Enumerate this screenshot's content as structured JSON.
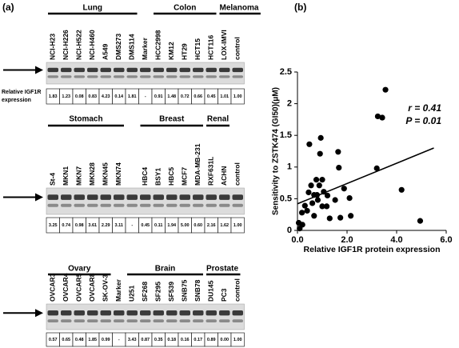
{
  "panel_a": {
    "label": "(a)",
    "row_label": [
      "Relative IGF1R",
      "expression"
    ],
    "rows": [
      {
        "sections": [
          {
            "group": "Lung",
            "lanes": [
              {
                "label": "NCI-H23",
                "value": "1.83"
              },
              {
                "label": "NCI-H226",
                "value": "1.23"
              },
              {
                "label": "NCI-H522",
                "value": "0.08"
              },
              {
                "label": "NCI-H460",
                "value": "0.83"
              },
              {
                "label": "A549",
                "value": "4.23"
              },
              {
                "label": "DMS273",
                "value": "0.14"
              },
              {
                "label": "DMS114",
                "value": "1.81"
              }
            ]
          },
          {
            "lanes": [
              {
                "label": "Marker",
                "value": "-"
              }
            ]
          },
          {
            "group": "Colon",
            "lanes": [
              {
                "label": "HCC2998",
                "value": "0.91"
              },
              {
                "label": "KM12",
                "value": "1.48"
              },
              {
                "label": "HT29",
                "value": "0.72"
              },
              {
                "label": "HCT15",
                "value": "0.66"
              },
              {
                "label": "HCT116",
                "value": "0.45"
              }
            ]
          },
          {
            "group": "Melanoma",
            "lanes": [
              {
                "label": "LOX-IMVI",
                "value": "1.01"
              }
            ]
          },
          {
            "lanes": [
              {
                "label": "control",
                "value": "1.00"
              }
            ]
          }
        ]
      },
      {
        "sections": [
          {
            "group": "Stomach",
            "lanes": [
              {
                "label": "St-4",
                "value": "3.25"
              },
              {
                "label": "MKN1",
                "value": "0.74"
              },
              {
                "label": "MKN7",
                "value": "0.98"
              },
              {
                "label": "MKN28",
                "value": "3.61"
              },
              {
                "label": "MKN45",
                "value": "2.29"
              },
              {
                "label": "MKN74",
                "value": "3.11"
              }
            ]
          },
          {
            "lanes": [
              {
                "label": null,
                "value": "-"
              }
            ]
          },
          {
            "group": "Breast",
            "lanes": [
              {
                "label": "HBC4",
                "value": "0.45"
              },
              {
                "label": "BSY1",
                "value": "0.11"
              },
              {
                "label": "HBC5",
                "value": "1.94"
              },
              {
                "label": "MCF7",
                "value": "5.00"
              },
              {
                "label": "MDA-MB-231",
                "value": "0.60"
              }
            ]
          },
          {
            "group": "Renal",
            "lanes": [
              {
                "label": "RXF631L",
                "value": "2.16"
              },
              {
                "label": "ACHN",
                "value": "1.62"
              }
            ]
          },
          {
            "lanes": [
              {
                "label": "control",
                "value": "1.00"
              }
            ]
          }
        ]
      },
      {
        "sections": [
          {
            "group": "Ovary",
            "lanes": [
              {
                "label": "OVCAR3",
                "value": "0.57"
              },
              {
                "label": "OVCAR4",
                "value": "0.65"
              },
              {
                "label": "OVCAR5",
                "value": "0.48"
              },
              {
                "label": "OVCAR8",
                "value": "1.85"
              },
              {
                "label": "SK-OV-3",
                "value": "0.99"
              }
            ]
          },
          {
            "lanes": [
              {
                "label": "Marker",
                "value": "-"
              }
            ]
          },
          {
            "group": "Brain",
            "lanes": [
              {
                "label": "U251",
                "value": "3.43"
              },
              {
                "label": "SF268",
                "value": "0.87"
              },
              {
                "label": "SF295",
                "value": "0.35"
              },
              {
                "label": "SF539",
                "value": "0.18"
              },
              {
                "label": "SNB75",
                "value": "0.16"
              },
              {
                "label": "SNB78",
                "value": "0.17"
              }
            ]
          },
          {
            "group": "Prostate",
            "lanes": [
              {
                "label": "DU145",
                "value": "0.89"
              },
              {
                "label": "PC3",
                "value": "0.00"
              }
            ]
          },
          {
            "lanes": [
              {
                "label": "control",
                "value": "1.00"
              }
            ]
          }
        ]
      }
    ]
  },
  "chart_data": {
    "type": "scatter",
    "panel_label": "(b)",
    "x_label": "Relative IGF1R protein expression",
    "y_label": "Sensitivity to ZSTK474 (GI50)(μM)",
    "annotations": [
      "r = 0.41",
      "P = 0.01"
    ],
    "color": "#000000",
    "x": [
      3.55,
      3.24,
      3.42,
      3.2,
      4.2,
      4.95,
      1.64,
      1.67,
      0.94,
      0.91,
      0.48,
      0.76,
      0.55,
      0.82,
      1.06,
      0.88,
      1.21,
      1.0,
      0.6,
      0.3,
      0.18,
      0.2,
      0.09,
      0.39,
      0.67,
      1.52,
      1.88,
      2.1,
      1.73,
      2.15,
      0.79,
      1.18,
      1.3,
      0.67,
      1.0,
      0.45,
      0.05
    ],
    "y": [
      2.22,
      1.8,
      1.78,
      0.98,
      0.64,
      0.15,
      1.24,
      0.99,
      1.46,
      1.21,
      1.36,
      0.8,
      0.71,
      0.48,
      0.61,
      0.71,
      0.55,
      0.38,
      0.43,
      0.39,
      0.28,
      0.09,
      0.03,
      0.31,
      0.23,
      0.48,
      0.66,
      0.51,
      0.2,
      0.23,
      0.56,
      0.38,
      0.19,
      0.56,
      0.8,
      0.6,
      0.12
    ],
    "trend_line": {
      "x": [
        0,
        5.5
      ],
      "y": [
        0.42,
        1.3
      ]
    },
    "xlim": [
      0,
      6
    ],
    "ylim": [
      0,
      2.5
    ],
    "xticks": [
      {
        "value": 0,
        "label": "0.0"
      },
      {
        "value": 2,
        "label": "2.0"
      },
      {
        "value": 4,
        "label": "4.0"
      },
      {
        "value": 6,
        "label": "6.0"
      }
    ],
    "yticks": [
      0,
      0.5,
      1,
      1.5,
      2,
      2.5
    ]
  }
}
